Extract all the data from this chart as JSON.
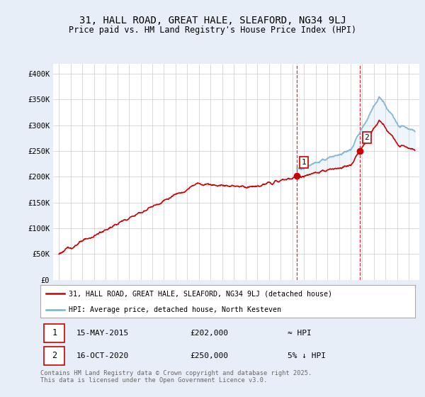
{
  "title": "31, HALL ROAD, GREAT HALE, SLEAFORD, NG34 9LJ",
  "subtitle": "Price paid vs. HM Land Registry's House Price Index (HPI)",
  "ylim": [
    0,
    420000
  ],
  "yticks": [
    0,
    50000,
    100000,
    150000,
    200000,
    250000,
    300000,
    350000,
    400000
  ],
  "ytick_labels": [
    "£0",
    "£50K",
    "£100K",
    "£150K",
    "£200K",
    "£250K",
    "£300K",
    "£350K",
    "£400K"
  ],
  "sale1_year": 2015.37,
  "sale1_price": 202000,
  "sale1_label": "15-MAY-2015",
  "sale2_year": 2020.79,
  "sale2_price": 250000,
  "sale2_label": "16-OCT-2020",
  "red_color": "#cc0000",
  "blue_color": "#7ab0d4",
  "fill_color": "#d0e8f8",
  "background_color": "#e8eef8",
  "plot_bg_color": "#ffffff",
  "grid_color": "#cccccc",
  "legend1_label": "31, HALL ROAD, GREAT HALE, SLEAFORD, NG34 9LJ (detached house)",
  "legend2_label": "HPI: Average price, detached house, North Kesteven",
  "footer": "Contains HM Land Registry data © Crown copyright and database right 2025.\nThis data is licensed under the Open Government Licence v3.0.",
  "title_fontsize": 10,
  "subtitle_fontsize": 8.5,
  "tick_fontsize": 7.5,
  "xlim_left": 1994.5,
  "xlim_right": 2025.9
}
